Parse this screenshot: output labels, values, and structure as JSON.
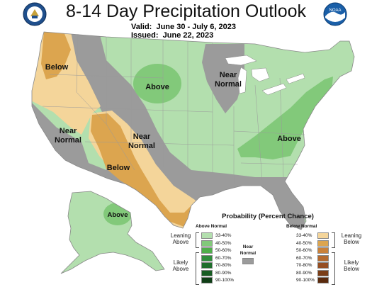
{
  "header": {
    "title": "8-14 Day Precipitation Outlook",
    "valid_label": "Valid:",
    "valid_value": "June 30 - July 6, 2023",
    "issued_label": "Issued:",
    "issued_value": "June 22, 2023"
  },
  "logos": {
    "left": "department-of-commerce-seal",
    "right": "noaa-logo",
    "right_text": "NOAA"
  },
  "map": {
    "region_labels": [
      "Below",
      "Above",
      "Near Normal",
      "Near Normal",
      "Near Normal",
      "Below",
      "Above",
      "Above"
    ],
    "colors": {
      "above_33_40": "#b3dfae",
      "above_40_50": "#82c97a",
      "near_normal": "#9b9b9b",
      "below_33_40": "#f4d59a",
      "below_40_50": "#dca54f",
      "background": "#ffffff",
      "great_lakes": "#ffffff"
    }
  },
  "legend": {
    "title": "Probability (Percent Chance)",
    "above_header": "Above Normal",
    "below_header": "Below Normal",
    "near_label_1": "Near",
    "near_label_2": "Normal",
    "leaning_above_1": "Leaning",
    "leaning_above_2": "Above",
    "likely_above_1": "Likely",
    "likely_above_2": "Above",
    "leaning_below_1": "Leaning",
    "leaning_below_2": "Below",
    "likely_below_1": "Likely",
    "likely_below_2": "Below",
    "above_bins": [
      {
        "label": "33-40%",
        "color": "#b3dfae"
      },
      {
        "label": "40-50%",
        "color": "#82c97a"
      },
      {
        "label": "50-60%",
        "color": "#4fae4a"
      },
      {
        "label": "60-70%",
        "color": "#2f8d3c"
      },
      {
        "label": "70-80%",
        "color": "#1e6d2b"
      },
      {
        "label": "80-90%",
        "color": "#175c22"
      },
      {
        "label": "90-100%",
        "color": "#0f3e16"
      }
    ],
    "below_bins": [
      {
        "label": "33-40%",
        "color": "#f4d59a"
      },
      {
        "label": "40-50%",
        "color": "#dca54f"
      },
      {
        "label": "50-60%",
        "color": "#c9813a"
      },
      {
        "label": "60-70%",
        "color": "#b46a2f"
      },
      {
        "label": "70-80%",
        "color": "#954e22"
      },
      {
        "label": "80-90%",
        "color": "#7a3d17"
      },
      {
        "label": "90-100%",
        "color": "#5a2a0d"
      }
    ],
    "near_color": "#9b9b9b"
  }
}
